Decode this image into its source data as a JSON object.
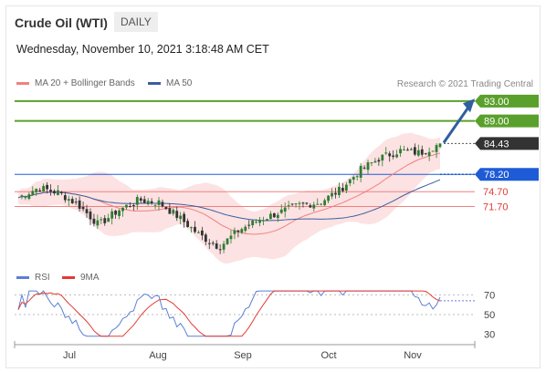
{
  "header": {
    "title": "Crude Oil (WTI)",
    "timeframe": "DAILY",
    "datetime": "Wednesday, November 10, 2021 3:18:48 AM CET",
    "credit": "Research © 2021 Trading Central"
  },
  "legend_main": [
    {
      "label": "MA 20 + Bollinger Bands",
      "color": "#f08080"
    },
    {
      "label": "MA 50",
      "color": "#3a5fa0"
    }
  ],
  "legend_rsi": [
    {
      "label": "RSI",
      "color": "#5b7fd6"
    },
    {
      "label": "9MA",
      "color": "#e53935"
    }
  ],
  "colors": {
    "up_candle": "#2e7d32",
    "down_candle": "#333333",
    "resistance": "#5aa02c",
    "pivot": "#1e5bd6",
    "support": "#f08080",
    "bollinger_fill": "#fbd5d5",
    "arrow": "#2f5f9e",
    "last_price": "#333333"
  },
  "chart_data": [
    {
      "type": "candlestick",
      "title": "Crude Oil (WTI)",
      "x": [
        "Jul",
        "Aug",
        "Sep",
        "Oct",
        "Nov"
      ],
      "ylim": [
        60,
        95
      ],
      "price_range_by_period": [
        {
          "period": "early Jul",
          "low": 72,
          "high": 76
        },
        {
          "period": "mid Jul",
          "low": 66,
          "high": 74
        },
        {
          "period": "Aug",
          "low": 62,
          "high": 73
        },
        {
          "period": "late Aug",
          "low": 62,
          "high": 69
        },
        {
          "period": "Sep",
          "low": 67,
          "high": 75
        },
        {
          "period": "Oct",
          "low": 75,
          "high": 84
        },
        {
          "period": "late Oct",
          "low": 81,
          "high": 85
        },
        {
          "period": "early Nov",
          "low": 78,
          "high": 84
        }
      ],
      "levels": [
        {
          "value": 93.0,
          "label": "93.00",
          "kind": "resistance"
        },
        {
          "value": 89.0,
          "label": "89.00",
          "kind": "resistance"
        },
        {
          "value": 84.43,
          "label": "84.43",
          "kind": "last"
        },
        {
          "value": 78.2,
          "label": "78.20",
          "kind": "pivot"
        },
        {
          "value": 74.7,
          "label": "74.70",
          "kind": "support"
        },
        {
          "value": 71.7,
          "label": "71.70",
          "kind": "support"
        }
      ]
    },
    {
      "type": "line",
      "title": "RSI",
      "series": [
        {
          "name": "RSI"
        },
        {
          "name": "9MA"
        }
      ],
      "ylim": [
        30,
        70
      ],
      "y_ticks": [
        "70",
        "50",
        "30"
      ],
      "x": [
        "Jul",
        "Aug",
        "Sep",
        "Oct",
        "Nov"
      ]
    }
  ]
}
